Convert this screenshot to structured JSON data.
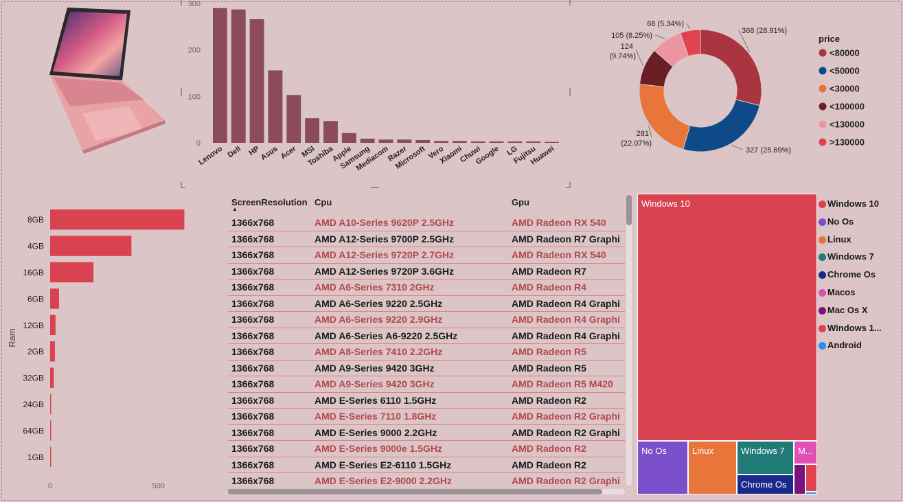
{
  "brand_chart": {
    "chart_data": {
      "type": "bar",
      "categories": [
        "Lenovo",
        "Dell",
        "HP",
        "Asus",
        "Acer",
        "MSI",
        "Toshiba",
        "Apple",
        "Samsung",
        "Mediacom",
        "Razer",
        "Microsoft",
        "Vero",
        "Xiaomi",
        "Chuwi",
        "Google",
        "LG",
        "Fujitsu",
        "Huawei"
      ],
      "values": [
        290,
        287,
        266,
        156,
        103,
        53,
        47,
        21,
        9,
        7,
        7,
        6,
        4,
        4,
        3,
        3,
        3,
        3,
        2
      ],
      "ylim": [
        0,
        300
      ],
      "yticks": [
        0,
        100,
        200,
        300
      ],
      "color": "#8b4a5e"
    }
  },
  "donut": {
    "legend_title": "price",
    "chart_data": {
      "type": "pie",
      "slices": [
        {
          "name": "<80000",
          "value": 368,
          "label": "368 (28.91%)",
          "color": "#a8353f"
        },
        {
          "name": "<50000",
          "value": 327,
          "label": "327 (25.69%)",
          "color": "#0f4a88"
        },
        {
          "name": "<30000",
          "value": 281,
          "label": "281 (22.07%)",
          "color": "#e8753a"
        },
        {
          "name": "<100000",
          "value": 124,
          "label": "124 (9.74%)",
          "color": "#6b1f24"
        },
        {
          "name": "<130000",
          "value": 105,
          "label": "105 (8.25%)",
          "color": "#ec95a0"
        },
        {
          "name": ">130000",
          "value": 68,
          "label": "68 (5.34%)",
          "color": "#e0434f"
        }
      ]
    }
  },
  "ram_chart": {
    "chart_data": {
      "type": "bar",
      "orientation": "horizontal",
      "ylabel": "Ram",
      "categories": [
        "8GB",
        "4GB",
        "16GB",
        "6GB",
        "12GB",
        "2GB",
        "32GB",
        "24GB",
        "64GB",
        "1GB"
      ],
      "values": [
        619,
        375,
        200,
        41,
        25,
        22,
        17,
        3,
        1,
        2
      ],
      "xlim": [
        0,
        700
      ],
      "xticks": [
        0,
        500
      ],
      "color": "#d9434f"
    }
  },
  "table": {
    "headers": [
      "ScreenResolution",
      "Cpu",
      "Gpu"
    ],
    "rows": [
      [
        "1366x768",
        "AMD A10-Series 9620P 2.5GHz",
        "AMD Radeon RX 540"
      ],
      [
        "1366x768",
        "AMD A12-Series 9700P 2.5GHz",
        "AMD Radeon R7 Graphi"
      ],
      [
        "1366x768",
        "AMD A12-Series 9720P 2.7GHz",
        "AMD Radeon RX 540"
      ],
      [
        "1366x768",
        "AMD A12-Series 9720P 3.6GHz",
        "AMD Radeon R7"
      ],
      [
        "1366x768",
        "AMD A6-Series 7310 2GHz",
        "AMD Radeon R4"
      ],
      [
        "1366x768",
        "AMD A6-Series 9220 2.5GHz",
        "AMD Radeon R4 Graphi"
      ],
      [
        "1366x768",
        "AMD A6-Series 9220 2.9GHz",
        "AMD Radeon R4 Graphi"
      ],
      [
        "1366x768",
        "AMD A6-Series A6-9220 2.5GHz",
        "AMD Radeon R4 Graphi"
      ],
      [
        "1366x768",
        "AMD A8-Series 7410 2.2GHz",
        "AMD Radeon R5"
      ],
      [
        "1366x768",
        "AMD A9-Series 9420 3GHz",
        "AMD Radeon R5"
      ],
      [
        "1366x768",
        "AMD A9-Series 9420 3GHz",
        "AMD Radeon R5 M420"
      ],
      [
        "1366x768",
        "AMD E-Series 6110 1.5GHz",
        "AMD Radeon R2"
      ],
      [
        "1366x768",
        "AMD E-Series 7110 1.8GHz",
        "AMD Radeon R2 Graphi"
      ],
      [
        "1366x768",
        "AMD E-Series 9000 2.2GHz",
        "AMD Radeon R2 Graphi"
      ],
      [
        "1366x768",
        "AMD E-Series 9000e 1.5GHz",
        "AMD Radeon R2"
      ],
      [
        "1366x768",
        "AMD E-Series E2-6110 1.5GHz",
        "AMD Radeon R2"
      ],
      [
        "1366x768",
        "AMD E-Series E2-9000 2.2GHz",
        "AMD Radeon R2 Graphi"
      ]
    ]
  },
  "treemap": {
    "tiles": {
      "windows10": "Windows 10",
      "noos": "No Os",
      "linux": "Linux",
      "windows7": "Windows 7",
      "chromeos": "Chrome Os",
      "macos_short": "M..."
    },
    "legend": [
      {
        "label": "Windows 10",
        "color": "#d9434f"
      },
      {
        "label": "No Os",
        "color": "#7b4fc9"
      },
      {
        "label": "Linux",
        "color": "#e8753a"
      },
      {
        "label": "Windows 7",
        "color": "#1f7a78"
      },
      {
        "label": "Chrome Os",
        "color": "#1a2a8c"
      },
      {
        "label": "Macos",
        "color": "#e04fb3"
      },
      {
        "label": "Mac Os X",
        "color": "#7a137a"
      },
      {
        "label": "Windows 1...",
        "color": "#e0434f"
      },
      {
        "label": "Android",
        "color": "#2f8cf0"
      }
    ]
  }
}
